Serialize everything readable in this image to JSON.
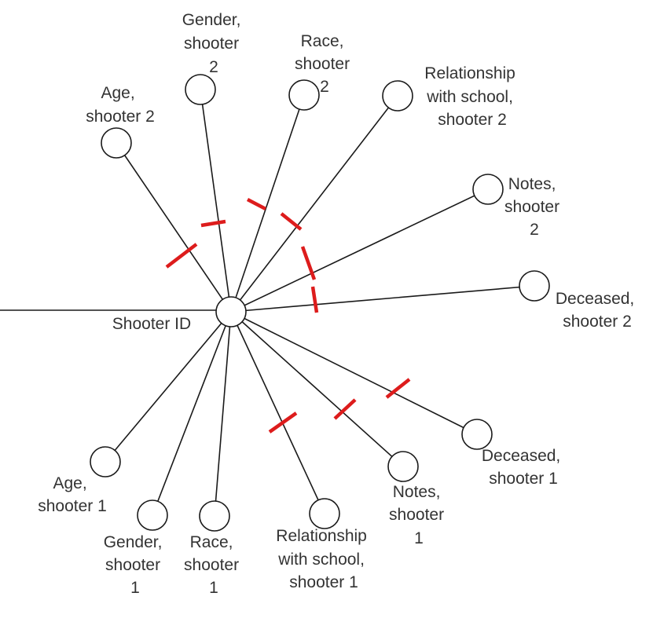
{
  "diagram": {
    "center": {
      "label": "Shooter ID"
    },
    "attributes": [
      {
        "id": "age2",
        "lines": [
          "Age,",
          "shooter 2"
        ]
      },
      {
        "id": "gender2",
        "lines": [
          "Gender,",
          "shooter",
          "2"
        ]
      },
      {
        "id": "race2",
        "lines": [
          "Race,",
          "shooter",
          "2"
        ]
      },
      {
        "id": "rel2",
        "lines": [
          "Relationship",
          "with school,",
          "shooter 2"
        ]
      },
      {
        "id": "notes2",
        "lines": [
          "Notes,",
          "shooter",
          "2"
        ]
      },
      {
        "id": "dec2",
        "lines": [
          "Deceased,",
          "shooter 2"
        ]
      },
      {
        "id": "dec1",
        "lines": [
          "Deceased,",
          "shooter 1"
        ]
      },
      {
        "id": "notes1",
        "lines": [
          "Notes,",
          "shooter",
          "1"
        ]
      },
      {
        "id": "rel1",
        "lines": [
          "Relationship",
          "with school,",
          "shooter 1"
        ]
      },
      {
        "id": "race1",
        "lines": [
          "Race,",
          "shooter",
          "1"
        ]
      },
      {
        "id": "gender1",
        "lines": [
          "Gender,",
          "shooter",
          "1"
        ]
      },
      {
        "id": "age1",
        "lines": [
          "Age,",
          "shooter 1"
        ]
      }
    ],
    "colors": {
      "line": "#1a1a1a",
      "text": "#333333",
      "marks": "#dd1c1c"
    }
  }
}
